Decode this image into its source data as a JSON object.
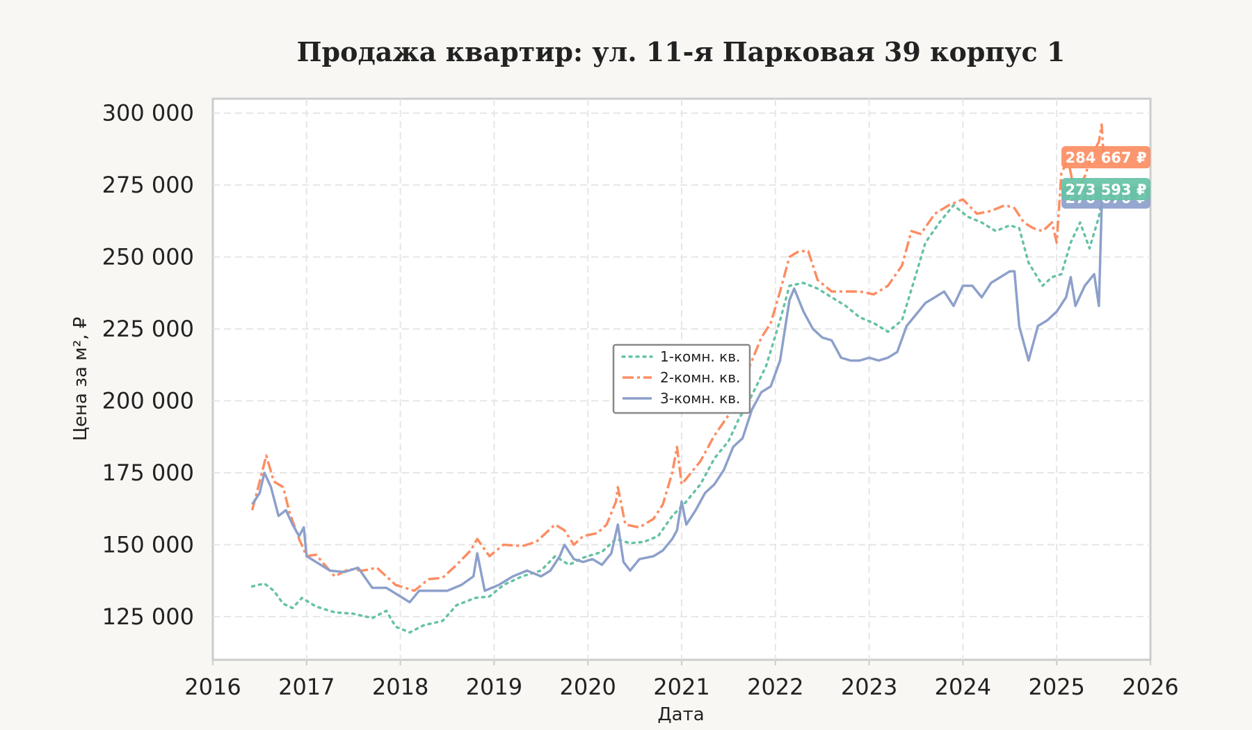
{
  "chart_data": {
    "type": "line",
    "title": "Продажа квартир: ул. 11-я Парковая 39 корпус 1",
    "xlabel": "Дата",
    "ylabel": "Цена за м², ₽",
    "xlim": [
      2016.0,
      2026.0
    ],
    "ylim": [
      110000,
      305000
    ],
    "x_ticks": [
      "2016",
      "2017",
      "2018",
      "2019",
      "2020",
      "2021",
      "2022",
      "2023",
      "2024",
      "2025",
      "2026"
    ],
    "y_ticks": [
      "125 000",
      "150 000",
      "175 000",
      "200 000",
      "225 000",
      "250 000",
      "275 000",
      "300 000"
    ],
    "y_tick_values": [
      125000,
      150000,
      175000,
      200000,
      225000,
      250000,
      275000,
      300000
    ],
    "grid": true,
    "legend_position": "center",
    "series": [
      {
        "name": "1-комн. кв.",
        "color": "#66c2a5",
        "style": "dotted",
        "end_label": "273 593 ₽",
        "points": [
          [
            2016.42,
            135500
          ],
          [
            2016.55,
            136500
          ],
          [
            2016.65,
            134000
          ],
          [
            2016.75,
            129500
          ],
          [
            2016.85,
            128000
          ],
          [
            2016.95,
            131500
          ],
          [
            2017.1,
            128500
          ],
          [
            2017.3,
            126500
          ],
          [
            2017.5,
            126000
          ],
          [
            2017.7,
            124500
          ],
          [
            2017.85,
            127000
          ],
          [
            2017.95,
            121500
          ],
          [
            2018.1,
            119500
          ],
          [
            2018.25,
            122000
          ],
          [
            2018.45,
            123500
          ],
          [
            2018.6,
            129000
          ],
          [
            2018.8,
            131500
          ],
          [
            2018.95,
            132000
          ],
          [
            2019.1,
            136000
          ],
          [
            2019.3,
            139000
          ],
          [
            2019.5,
            141000
          ],
          [
            2019.65,
            146000
          ],
          [
            2019.8,
            143000
          ],
          [
            2019.95,
            145500
          ],
          [
            2020.15,
            147500
          ],
          [
            2020.3,
            152000
          ],
          [
            2020.45,
            150500
          ],
          [
            2020.6,
            151000
          ],
          [
            2020.75,
            153000
          ],
          [
            2020.9,
            160000
          ],
          [
            2021.05,
            165000
          ],
          [
            2021.2,
            171000
          ],
          [
            2021.35,
            180000
          ],
          [
            2021.5,
            186000
          ],
          [
            2021.6,
            193000
          ],
          [
            2021.75,
            202000
          ],
          [
            2021.9,
            212000
          ],
          [
            2022.05,
            228000
          ],
          [
            2022.15,
            240000
          ],
          [
            2022.3,
            241000
          ],
          [
            2022.45,
            239000
          ],
          [
            2022.6,
            236000
          ],
          [
            2022.75,
            233000
          ],
          [
            2022.9,
            229000
          ],
          [
            2023.05,
            227000
          ],
          [
            2023.2,
            224000
          ],
          [
            2023.35,
            228000
          ],
          [
            2023.5,
            244000
          ],
          [
            2023.6,
            255000
          ],
          [
            2023.75,
            262000
          ],
          [
            2023.9,
            268000
          ],
          [
            2024.05,
            264000
          ],
          [
            2024.2,
            262000
          ],
          [
            2024.35,
            259000
          ],
          [
            2024.5,
            261000
          ],
          [
            2024.6,
            260000
          ],
          [
            2024.7,
            248000
          ],
          [
            2024.85,
            240000
          ],
          [
            2024.95,
            243000
          ],
          [
            2025.05,
            244000
          ],
          [
            2025.15,
            255000
          ],
          [
            2025.25,
            262000
          ],
          [
            2025.35,
            253000
          ],
          [
            2025.45,
            264000
          ],
          [
            2025.5,
            273593
          ]
        ]
      },
      {
        "name": "2-комн. кв.",
        "color": "#fc8d62",
        "style": "dashdot",
        "end_label": "284 667 ₽",
        "points": [
          [
            2016.42,
            162000
          ],
          [
            2016.5,
            172000
          ],
          [
            2016.57,
            181000
          ],
          [
            2016.65,
            172000
          ],
          [
            2016.75,
            170000
          ],
          [
            2016.82,
            161000
          ],
          [
            2016.92,
            152000
          ],
          [
            2017.0,
            146000
          ],
          [
            2017.1,
            146500
          ],
          [
            2017.3,
            139000
          ],
          [
            2017.45,
            141500
          ],
          [
            2017.6,
            141000
          ],
          [
            2017.75,
            142000
          ],
          [
            2017.85,
            139000
          ],
          [
            2017.95,
            136000
          ],
          [
            2018.15,
            134000
          ],
          [
            2018.3,
            138000
          ],
          [
            2018.45,
            138500
          ],
          [
            2018.6,
            143000
          ],
          [
            2018.75,
            148000
          ],
          [
            2018.82,
            152000
          ],
          [
            2018.95,
            146000
          ],
          [
            2019.1,
            150000
          ],
          [
            2019.3,
            149500
          ],
          [
            2019.45,
            151000
          ],
          [
            2019.55,
            154000
          ],
          [
            2019.65,
            157000
          ],
          [
            2019.75,
            155000
          ],
          [
            2019.85,
            150000
          ],
          [
            2019.95,
            153000
          ],
          [
            2020.1,
            154000
          ],
          [
            2020.2,
            157000
          ],
          [
            2020.3,
            165000
          ],
          [
            2020.32,
            170000
          ],
          [
            2020.4,
            157000
          ],
          [
            2020.55,
            156000
          ],
          [
            2020.7,
            159000
          ],
          [
            2020.8,
            164000
          ],
          [
            2020.9,
            175000
          ],
          [
            2020.95,
            184000
          ],
          [
            2021.0,
            171000
          ],
          [
            2021.1,
            175000
          ],
          [
            2021.2,
            179000
          ],
          [
            2021.35,
            188000
          ],
          [
            2021.5,
            195000
          ],
          [
            2021.65,
            206000
          ],
          [
            2021.75,
            214000
          ],
          [
            2021.85,
            222000
          ],
          [
            2021.95,
            227000
          ],
          [
            2022.05,
            238000
          ],
          [
            2022.15,
            250000
          ],
          [
            2022.25,
            252000
          ],
          [
            2022.35,
            252000
          ],
          [
            2022.45,
            242000
          ],
          [
            2022.6,
            238000
          ],
          [
            2022.75,
            238000
          ],
          [
            2022.9,
            238000
          ],
          [
            2023.05,
            237000
          ],
          [
            2023.2,
            240000
          ],
          [
            2023.35,
            247000
          ],
          [
            2023.45,
            259000
          ],
          [
            2023.55,
            258000
          ],
          [
            2023.7,
            265000
          ],
          [
            2023.85,
            268000
          ],
          [
            2024.0,
            270000
          ],
          [
            2024.15,
            265000
          ],
          [
            2024.3,
            266000
          ],
          [
            2024.45,
            268000
          ],
          [
            2024.55,
            267000
          ],
          [
            2024.65,
            262000
          ],
          [
            2024.75,
            260000
          ],
          [
            2024.85,
            259000
          ],
          [
            2024.95,
            262000
          ],
          [
            2025.0,
            255000
          ],
          [
            2025.05,
            279000
          ],
          [
            2025.12,
            284000
          ],
          [
            2025.2,
            271000
          ],
          [
            2025.3,
            278000
          ],
          [
            2025.38,
            286000
          ],
          [
            2025.45,
            290000
          ],
          [
            2025.48,
            296000
          ],
          [
            2025.5,
            284667
          ]
        ]
      },
      {
        "name": "3-комн. кв.",
        "color": "#8da0cb",
        "style": "solid",
        "end_label": "270 670 ₽",
        "points": [
          [
            2016.42,
            164000
          ],
          [
            2016.5,
            168000
          ],
          [
            2016.55,
            175000
          ],
          [
            2016.62,
            170000
          ],
          [
            2016.7,
            160000
          ],
          [
            2016.78,
            162000
          ],
          [
            2016.85,
            157000
          ],
          [
            2016.92,
            153000
          ],
          [
            2016.97,
            156000
          ],
          [
            2017.0,
            146000
          ],
          [
            2017.1,
            144000
          ],
          [
            2017.25,
            141000
          ],
          [
            2017.4,
            140500
          ],
          [
            2017.55,
            142000
          ],
          [
            2017.7,
            135000
          ],
          [
            2017.85,
            135000
          ],
          [
            2017.95,
            133000
          ],
          [
            2018.1,
            130000
          ],
          [
            2018.2,
            134000
          ],
          [
            2018.35,
            134000
          ],
          [
            2018.5,
            134000
          ],
          [
            2018.65,
            136000
          ],
          [
            2018.78,
            139000
          ],
          [
            2018.82,
            147000
          ],
          [
            2018.9,
            134000
          ],
          [
            2019.05,
            136000
          ],
          [
            2019.2,
            139000
          ],
          [
            2019.35,
            141000
          ],
          [
            2019.5,
            139000
          ],
          [
            2019.6,
            141000
          ],
          [
            2019.7,
            146000
          ],
          [
            2019.75,
            150000
          ],
          [
            2019.85,
            145000
          ],
          [
            2019.95,
            144000
          ],
          [
            2020.05,
            145000
          ],
          [
            2020.15,
            143000
          ],
          [
            2020.25,
            147000
          ],
          [
            2020.32,
            157000
          ],
          [
            2020.38,
            144000
          ],
          [
            2020.45,
            141000
          ],
          [
            2020.55,
            145000
          ],
          [
            2020.7,
            146000
          ],
          [
            2020.8,
            148000
          ],
          [
            2020.9,
            152000
          ],
          [
            2020.95,
            155000
          ],
          [
            2021.0,
            165000
          ],
          [
            2021.05,
            157000
          ],
          [
            2021.15,
            162000
          ],
          [
            2021.25,
            168000
          ],
          [
            2021.35,
            171000
          ],
          [
            2021.45,
            176000
          ],
          [
            2021.55,
            184000
          ],
          [
            2021.65,
            187000
          ],
          [
            2021.75,
            197000
          ],
          [
            2021.85,
            203000
          ],
          [
            2021.95,
            205000
          ],
          [
            2022.05,
            214000
          ],
          [
            2022.15,
            235000
          ],
          [
            2022.2,
            239000
          ],
          [
            2022.3,
            231000
          ],
          [
            2022.4,
            225000
          ],
          [
            2022.5,
            222000
          ],
          [
            2022.6,
            221000
          ],
          [
            2022.7,
            215000
          ],
          [
            2022.8,
            214000
          ],
          [
            2022.9,
            214000
          ],
          [
            2023.0,
            215000
          ],
          [
            2023.1,
            214000
          ],
          [
            2023.2,
            215000
          ],
          [
            2023.3,
            217000
          ],
          [
            2023.4,
            226000
          ],
          [
            2023.5,
            230000
          ],
          [
            2023.6,
            234000
          ],
          [
            2023.7,
            236000
          ],
          [
            2023.8,
            238000
          ],
          [
            2023.9,
            233000
          ],
          [
            2024.0,
            240000
          ],
          [
            2024.1,
            240000
          ],
          [
            2024.2,
            236000
          ],
          [
            2024.3,
            241000
          ],
          [
            2024.4,
            243000
          ],
          [
            2024.5,
            245000
          ],
          [
            2024.55,
            245000
          ],
          [
            2024.6,
            226000
          ],
          [
            2024.7,
            214000
          ],
          [
            2024.8,
            226000
          ],
          [
            2024.9,
            228000
          ],
          [
            2025.0,
            231000
          ],
          [
            2025.1,
            236000
          ],
          [
            2025.15,
            243000
          ],
          [
            2025.2,
            233000
          ],
          [
            2025.3,
            240000
          ],
          [
            2025.4,
            244000
          ],
          [
            2025.45,
            233000
          ],
          [
            2025.48,
            268000
          ],
          [
            2025.5,
            270670
          ]
        ]
      }
    ]
  }
}
